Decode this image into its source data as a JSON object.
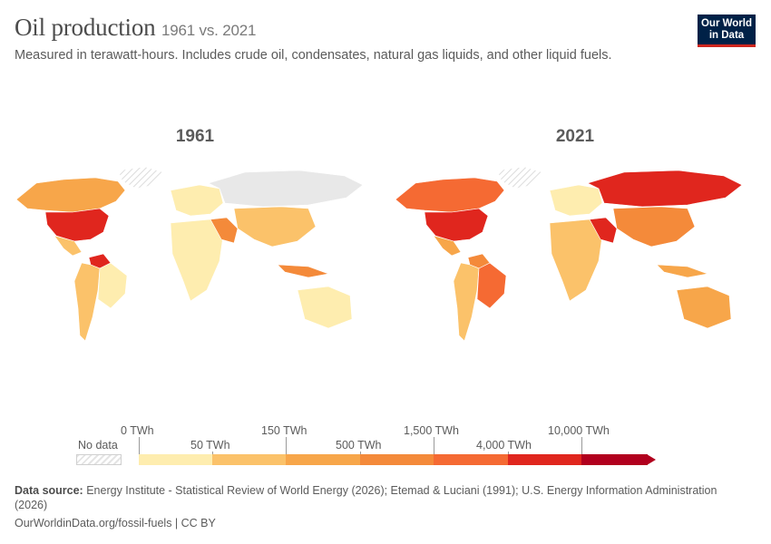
{
  "header": {
    "title": "Oil production",
    "time_range": "1961 vs. 2021",
    "subtitle": "Measured in terawatt-hours. Includes crude oil, condensates, natural gas liquids, and other liquid fuels.",
    "logo_line1": "Our World",
    "logo_line2": "in Data"
  },
  "maps": [
    {
      "year": "1961",
      "colors": {
        "na": "#f7a64a",
        "usa": "#e0261e",
        "mexico": "#fbc26a",
        "venezuela": "#e0261e",
        "sa": "#fbc26a",
        "brazil": "#feedaf",
        "europe": "#feedaf",
        "ussr": "#e8e8e8",
        "gulf": "#f48a3a",
        "africa": "#feedaf",
        "asia": "#fbc26a",
        "australia": "#feedaf",
        "indonesia": "#f48a3a"
      }
    },
    {
      "year": "2021",
      "colors": {
        "na": "#f56a33",
        "usa": "#e0261e",
        "mexico": "#f7a64a",
        "venezuela": "#f48a3a",
        "sa": "#fbc26a",
        "brazil": "#f56a33",
        "europe": "#feedaf",
        "ussr": "#e0261e",
        "gulf": "#e0261e",
        "africa": "#fbc26a",
        "asia": "#f48a3a",
        "australia": "#f7a64a",
        "indonesia": "#f7a64a"
      }
    }
  ],
  "legend": {
    "no_data_label": "No data",
    "bins": [
      {
        "color": "#feedaf"
      },
      {
        "color": "#fbc26a"
      },
      {
        "color": "#f7a64a"
      },
      {
        "color": "#f48a3a"
      },
      {
        "color": "#f56a33"
      },
      {
        "color": "#e0261e"
      },
      {
        "color": "#b1001e"
      }
    ],
    "labels_top": [
      "0 TWh",
      "150 TWh",
      "1,500 TWh",
      "10,000 TWh"
    ],
    "labels_bottom": [
      "50 TWh",
      "500 TWh",
      "4,000 TWh"
    ]
  },
  "footer": {
    "source_label": "Data source:",
    "source_text": "Energy Institute - Statistical Review of World Energy (2026); Etemad & Luciani (1991); U.S. Energy Information Administration (2026)",
    "url_license": "OurWorldinData.org/fossil-fuels | CC BY"
  }
}
